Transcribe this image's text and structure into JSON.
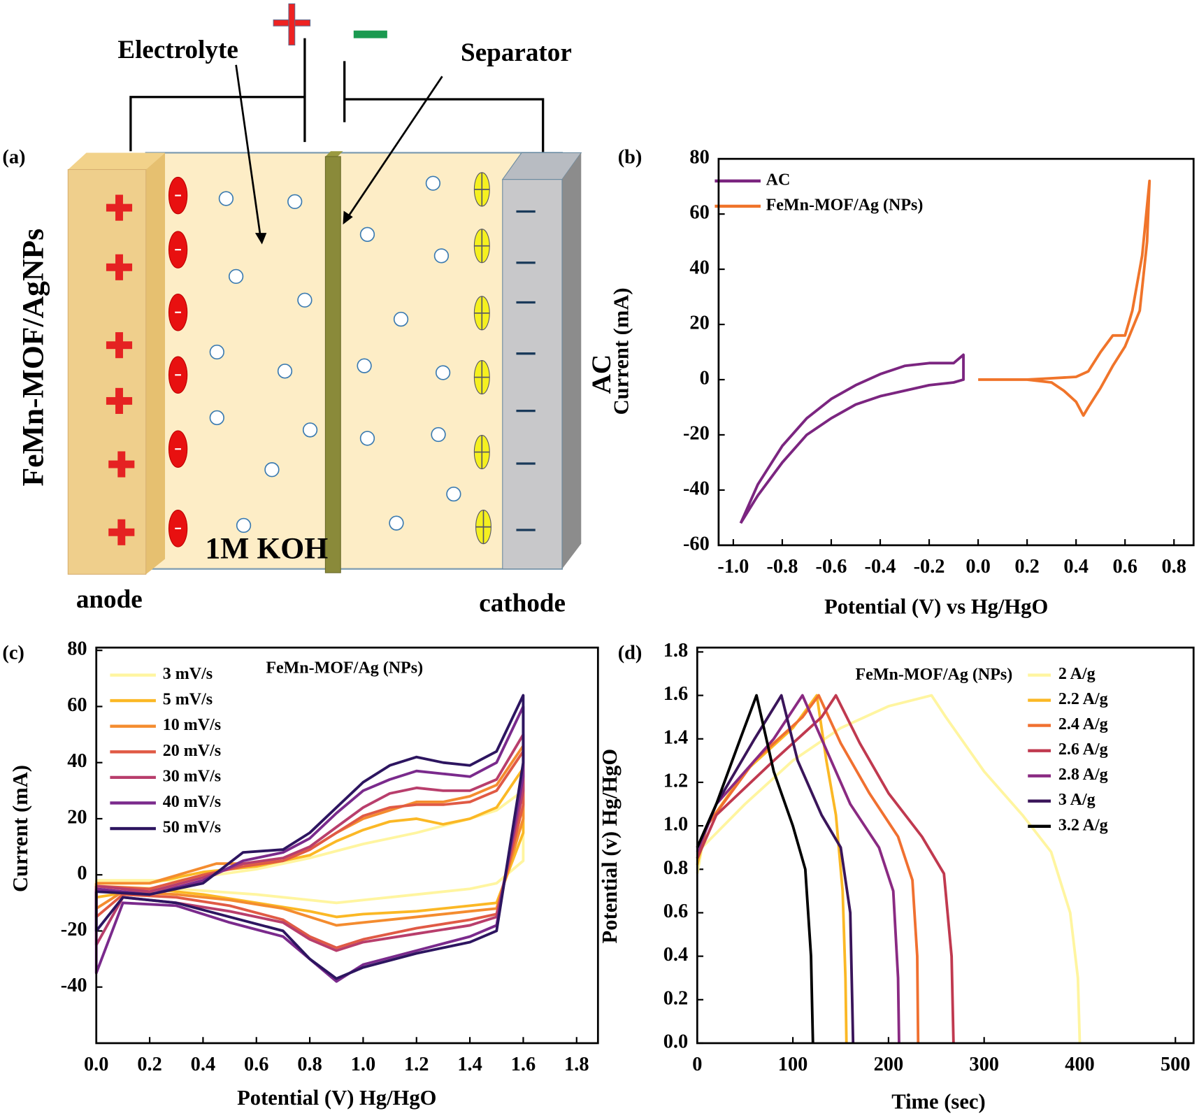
{
  "diagram": {
    "label": "(a)",
    "electrode_left": "FeMn-MOF/AgNPs",
    "electrode_right": "AC",
    "electrolyte": "Electrolyte",
    "separator": "Separator",
    "solution": "1M KOH",
    "anode": "anode",
    "cathode": "cathode"
  },
  "chart_data": [
    {
      "type": "line",
      "label": "(b)",
      "xlabel": "Potential (V) vs Hg/HgO",
      "ylabel": "Current (mA)",
      "xlim": [
        -1.06,
        0.88
      ],
      "ylim": [
        -60,
        80
      ],
      "xticks": [
        {
          "value": -1.0,
          "label": "-1.0"
        },
        -0.8,
        -0.6,
        -0.4,
        -0.2,
        {
          "value": 0,
          "label": "0.0"
        },
        0.2,
        0.4,
        0.6,
        0.8
      ],
      "yticks": [
        -60,
        -40,
        -20,
        0,
        20,
        40,
        60,
        80
      ],
      "series": [
        {
          "name": "AC",
          "color": "#7b2580",
          "x": [
            -0.97,
            -0.9,
            -0.8,
            -0.7,
            -0.6,
            -0.5,
            -0.4,
            -0.3,
            -0.2,
            -0.1,
            -0.06,
            -0.06,
            -0.1,
            -0.2,
            -0.3,
            -0.4,
            -0.5,
            -0.6,
            -0.7,
            -0.8,
            -0.9,
            -0.97
          ],
          "values": [
            -52,
            -38,
            -24,
            -14,
            -7,
            -2,
            2,
            5,
            6,
            6,
            9,
            0,
            -1,
            -2,
            -4,
            -6,
            -9,
            -14,
            -20,
            -30,
            -42,
            -52
          ]
        },
        {
          "name": "FeMn-MOF/Ag (NPs)",
          "color": "#f0742a",
          "x": [
            0,
            0.1,
            0.2,
            0.3,
            0.4,
            0.45,
            0.5,
            0.55,
            0.6,
            0.63,
            0.67,
            0.7,
            0.69,
            0.66,
            0.6,
            0.55,
            0.5,
            0.45,
            0.43,
            0.4,
            0.35,
            0.3,
            0.2,
            0
          ],
          "values": [
            0,
            0,
            0,
            0.5,
            1,
            3,
            10,
            16,
            16,
            25,
            45,
            72,
            50,
            25,
            12,
            5,
            -3,
            -10,
            -13,
            -8,
            -4,
            -1,
            0,
            0
          ]
        }
      ]
    },
    {
      "type": "line",
      "label": "(c)",
      "xlabel": "Potential (V) Hg/HgO",
      "ylabel": "Current (mA)",
      "annotation": "FeMn-MOF/Ag (NPs)",
      "xlim": [
        0,
        1.88
      ],
      "ylim": [
        -60,
        81
      ],
      "xticks": [
        {
          "value": 0,
          "label": "0.0"
        },
        0.2,
        0.4,
        0.6,
        0.8,
        {
          "value": 1,
          "label": "1.0"
        },
        1.2,
        1.4,
        1.6,
        1.8
      ],
      "yticks": [
        -40,
        -20,
        0,
        20,
        40,
        60,
        80
      ],
      "series": [
        {
          "name": "3 mV/s",
          "color": "#fff5a0",
          "x": [
            0,
            0.3,
            0.6,
            0.8,
            1.0,
            1.2,
            1.4,
            1.5,
            1.6,
            1.6,
            1.5,
            1.4,
            1.2,
            1.0,
            0.9,
            0.8,
            0.6,
            0.3,
            0,
            0
          ],
          "values": [
            -2,
            -2,
            2,
            6,
            11,
            15,
            20,
            23,
            30,
            5,
            -3,
            -5,
            -7,
            -9,
            -10,
            -9,
            -7,
            -5,
            -4,
            -2
          ]
        },
        {
          "name": "5 mV/s",
          "color": "#fbb825",
          "x": [
            0,
            0.2,
            0.4,
            0.6,
            0.8,
            0.9,
            1.0,
            1.1,
            1.2,
            1.3,
            1.4,
            1.5,
            1.6,
            1.6,
            1.5,
            1.4,
            1.2,
            1.0,
            0.9,
            0.8,
            0.6,
            0.4,
            0.2,
            0,
            0
          ],
          "values": [
            -3,
            -3,
            1,
            3,
            7,
            12,
            16,
            19,
            20,
            18,
            20,
            24,
            38,
            15,
            -10,
            -11,
            -13,
            -14,
            -15,
            -13,
            -10,
            -7,
            -5,
            -8,
            -3
          ]
        },
        {
          "name": "10 mV/s",
          "color": "#f48c2f",
          "x": [
            0,
            0.2,
            0.45,
            0.6,
            0.7,
            0.8,
            0.9,
            1.0,
            1.1,
            1.2,
            1.3,
            1.4,
            1.5,
            1.6,
            1.6,
            1.5,
            1.4,
            1.2,
            1.0,
            0.9,
            0.8,
            0.7,
            0.5,
            0.3,
            0.1,
            0,
            0
          ],
          "values": [
            -3,
            -3,
            4,
            4,
            5,
            9,
            15,
            20,
            23,
            26,
            26,
            28,
            32,
            46,
            20,
            -12,
            -13,
            -15,
            -17,
            -18,
            -15,
            -12,
            -9,
            -7,
            -6,
            -12,
            -3
          ]
        },
        {
          "name": "20 mV/s",
          "color": "#e05a45",
          "x": [
            0,
            0.2,
            0.4,
            0.55,
            0.7,
            0.8,
            0.9,
            1.0,
            1.1,
            1.2,
            1.3,
            1.4,
            1.5,
            1.6,
            1.6,
            1.5,
            1.4,
            1.2,
            1.0,
            0.9,
            0.8,
            0.7,
            0.5,
            0.3,
            0.1,
            0,
            0
          ],
          "values": [
            -4,
            -5,
            0,
            3,
            5,
            9,
            15,
            21,
            24,
            25,
            25,
            26,
            30,
            44,
            25,
            -14,
            -16,
            -19,
            -23,
            -26,
            -22,
            -16,
            -11,
            -8,
            -7,
            -15,
            -4
          ]
        },
        {
          "name": "30 mV/s",
          "color": "#b83e6c",
          "x": [
            0,
            0.2,
            0.4,
            0.55,
            0.7,
            0.8,
            0.9,
            1.0,
            1.1,
            1.2,
            1.3,
            1.4,
            1.5,
            1.6,
            1.6,
            1.5,
            1.4,
            1.2,
            1.0,
            0.9,
            0.8,
            0.7,
            0.5,
            0.3,
            0.1,
            0,
            0
          ],
          "values": [
            -4,
            -6,
            -1,
            4,
            6,
            10,
            17,
            24,
            29,
            31,
            30,
            30,
            34,
            50,
            30,
            -15,
            -18,
            -21,
            -24,
            -27,
            -23,
            -17,
            -13,
            -10,
            -8,
            -25,
            -4
          ]
        },
        {
          "name": "40 mV/s",
          "color": "#7a2a8c",
          "x": [
            0,
            0.2,
            0.4,
            0.55,
            0.7,
            0.8,
            0.9,
            1.0,
            1.1,
            1.2,
            1.3,
            1.4,
            1.5,
            1.6,
            1.6,
            1.5,
            1.4,
            1.2,
            1.0,
            0.9,
            0.8,
            0.7,
            0.5,
            0.3,
            0.1,
            0,
            0
          ],
          "values": [
            -5,
            -7,
            -2,
            5,
            8,
            13,
            22,
            30,
            34,
            37,
            36,
            35,
            40,
            60,
            35,
            -18,
            -22,
            -27,
            -32,
            -38,
            -30,
            -22,
            -17,
            -11,
            -10,
            -35,
            -5
          ]
        },
        {
          "name": "50 mV/s",
          "color": "#2d1560",
          "x": [
            0,
            0.2,
            0.4,
            0.55,
            0.7,
            0.8,
            0.9,
            1.0,
            1.1,
            1.2,
            1.3,
            1.4,
            1.5,
            1.6,
            1.6,
            1.5,
            1.4,
            1.2,
            1.0,
            0.9,
            0.8,
            0.7,
            0.5,
            0.3,
            0.1,
            0,
            0
          ],
          "values": [
            -6,
            -7,
            -3,
            8,
            9,
            15,
            24,
            33,
            39,
            42,
            40,
            39,
            44,
            64,
            40,
            -20,
            -24,
            -28,
            -33,
            -37,
            -30,
            -20,
            -15,
            -10,
            -8,
            -20,
            -6
          ]
        }
      ]
    },
    {
      "type": "line",
      "label": "(d)",
      "xlabel": "Time (sec)",
      "ylabel": "Potential (v) Hg/HgO",
      "annotation": "FeMn-MOF/Ag (NPs)",
      "xlim": [
        0,
        519
      ],
      "ylim": [
        0,
        1.82
      ],
      "xticks": [
        0,
        100,
        200,
        300,
        400,
        500
      ],
      "yticks": [
        {
          "value": 0,
          "label": "0.0"
        },
        0.2,
        0.4,
        0.6,
        0.8,
        {
          "value": 1,
          "label": "1.0"
        },
        1.2,
        1.4,
        1.6,
        1.8
      ],
      "series": [
        {
          "name": "2 A/g",
          "color": "#fff5a0",
          "x": [
            0,
            5,
            50,
            100,
            150,
            200,
            245,
            260,
            300,
            340,
            370,
            390,
            398,
            400
          ],
          "values": [
            0.78,
            0.9,
            1.1,
            1.3,
            1.45,
            1.55,
            1.6,
            1.5,
            1.25,
            1.05,
            0.88,
            0.6,
            0.3,
            0
          ]
        },
        {
          "name": "2.2 A/g",
          "color": "#fbb825",
          "x": [
            0,
            10,
            50,
            100,
            125,
            135,
            145,
            152,
            155,
            156
          ],
          "values": [
            0.82,
            1.0,
            1.25,
            1.45,
            1.6,
            1.3,
            1.05,
            0.7,
            0.3,
            0
          ]
        },
        {
          "name": "2.4 A/g",
          "color": "#f07030",
          "x": [
            0,
            10,
            60,
            110,
            127,
            150,
            180,
            210,
            225,
            230,
            231
          ],
          "values": [
            0.85,
            1.0,
            1.3,
            1.5,
            1.6,
            1.38,
            1.15,
            0.95,
            0.75,
            0.4,
            0
          ]
        },
        {
          "name": "2.6 A/g",
          "color": "#c0394f",
          "x": [
            0,
            20,
            80,
            130,
            145,
            170,
            200,
            235,
            258,
            266,
            268
          ],
          "values": [
            0.85,
            1.05,
            1.3,
            1.5,
            1.6,
            1.38,
            1.15,
            0.95,
            0.78,
            0.4,
            0
          ]
        },
        {
          "name": "2.8 A/g",
          "color": "#8a2a82",
          "x": [
            0,
            20,
            80,
            110,
            130,
            160,
            190,
            205,
            210,
            211
          ],
          "values": [
            0.88,
            1.1,
            1.4,
            1.6,
            1.4,
            1.1,
            0.9,
            0.7,
            0.3,
            0
          ]
        },
        {
          "name": "3 A/g",
          "color": "#3a155a",
          "x": [
            0,
            20,
            60,
            88,
            105,
            130,
            150,
            160,
            162,
            163
          ],
          "values": [
            0.9,
            1.1,
            1.4,
            1.6,
            1.3,
            1.05,
            0.9,
            0.6,
            0.2,
            0
          ]
        },
        {
          "name": "3.2 A/g",
          "color": "#000000",
          "x": [
            0,
            20,
            45,
            62,
            80,
            100,
            113,
            119,
            121
          ],
          "values": [
            0.9,
            1.1,
            1.4,
            1.6,
            1.25,
            1.0,
            0.8,
            0.4,
            0
          ]
        }
      ]
    }
  ]
}
